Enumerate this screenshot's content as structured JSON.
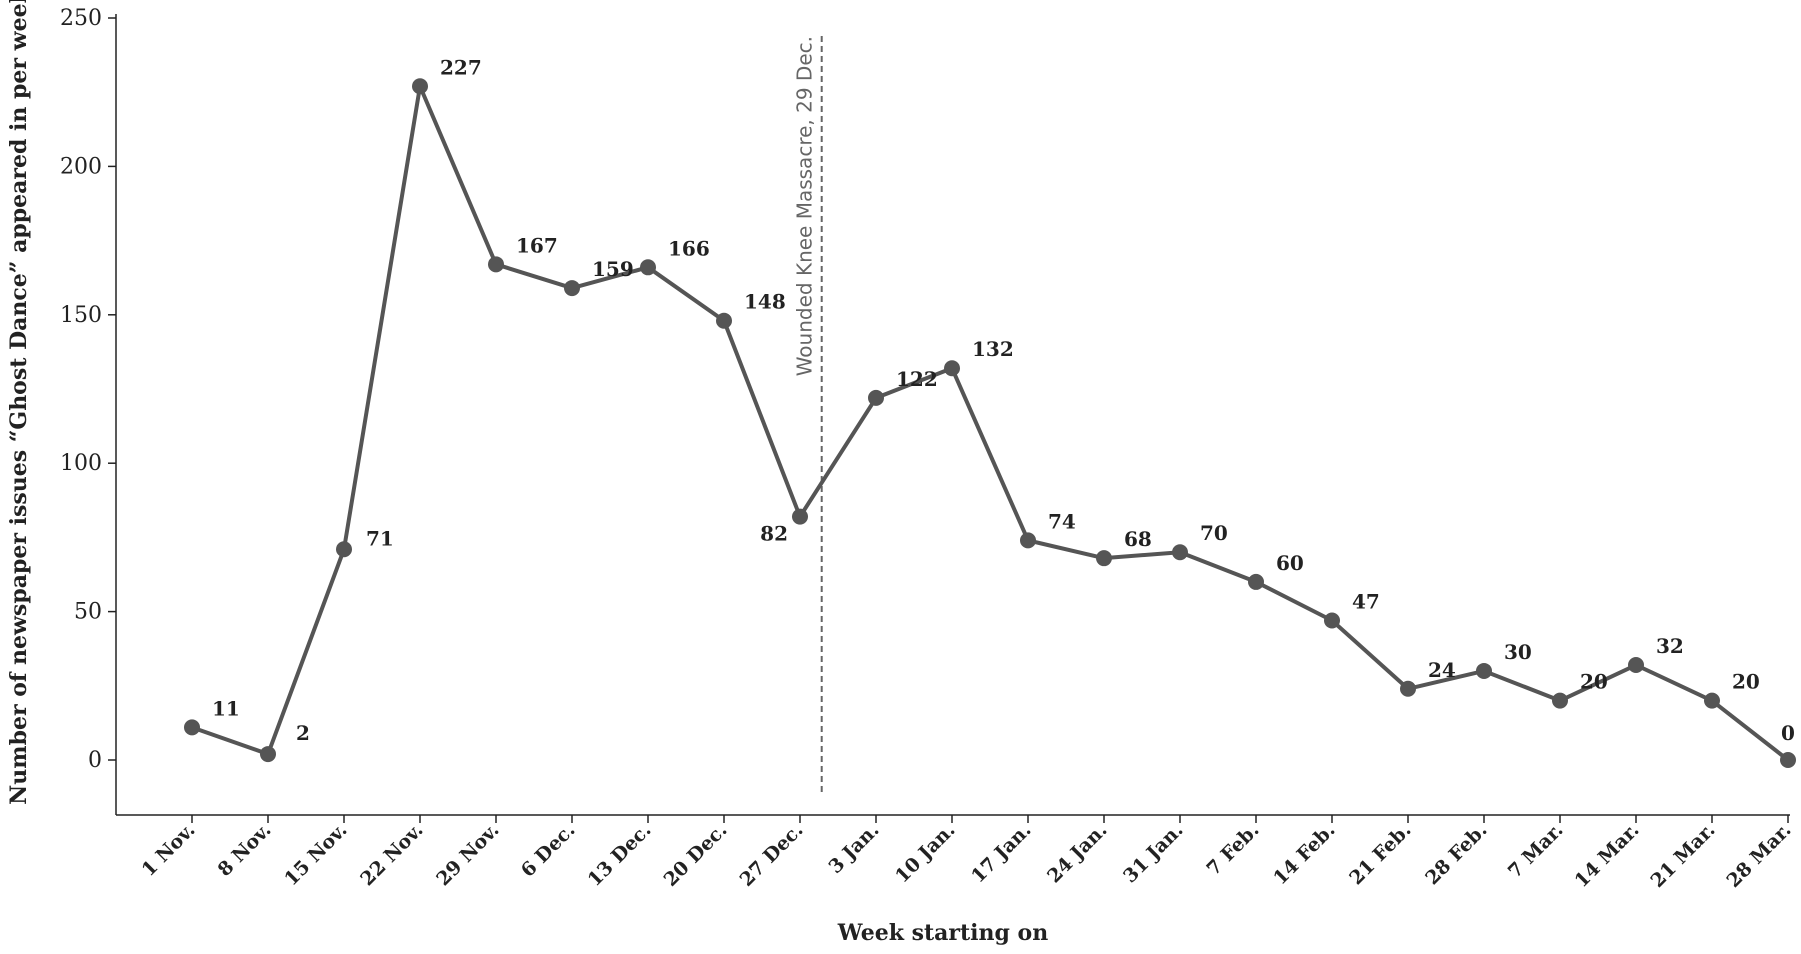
{
  "chart_data": {
    "type": "line",
    "xlabel": "Week starting on",
    "ylabel": "Number of newspaper issues “Ghost Dance” appeared in per week",
    "ylim": [
      0,
      250
    ],
    "yticks": [
      "0",
      "50",
      "100",
      "150",
      "200",
      "250"
    ],
    "categories": [
      "1 Nov.",
      "8 Nov.",
      "15 Nov.",
      "22 Nov.",
      "29 Nov.",
      "6 Dec.",
      "13 Dec.",
      "20 Dec.",
      "27 Dec.",
      "3 Jan.",
      "10 Jan.",
      "17 Jan.",
      "24 Jan.",
      "31 Jan.",
      "7 Feb.",
      "14 Feb.",
      "21 Feb.",
      "28 Feb.",
      "7 Mar.",
      "14 Mar.",
      "21 Mar.",
      "28 Mar."
    ],
    "series": [
      {
        "values": [
          11,
          2,
          71,
          227,
          167,
          159,
          166,
          148,
          82,
          122,
          132,
          74,
          68,
          70,
          60,
          47,
          24,
          30,
          20,
          32,
          20,
          0
        ]
      }
    ],
    "annotations": [
      {
        "text": "Wounded Knee Massacre, 29 Dec.",
        "x": "29 Dec.",
        "style": "dashed vertical line"
      }
    ],
    "grid": false,
    "colors": {
      "line": "#555555",
      "marker": "#555555",
      "axis": "#222222",
      "annotation": "#666666"
    }
  }
}
